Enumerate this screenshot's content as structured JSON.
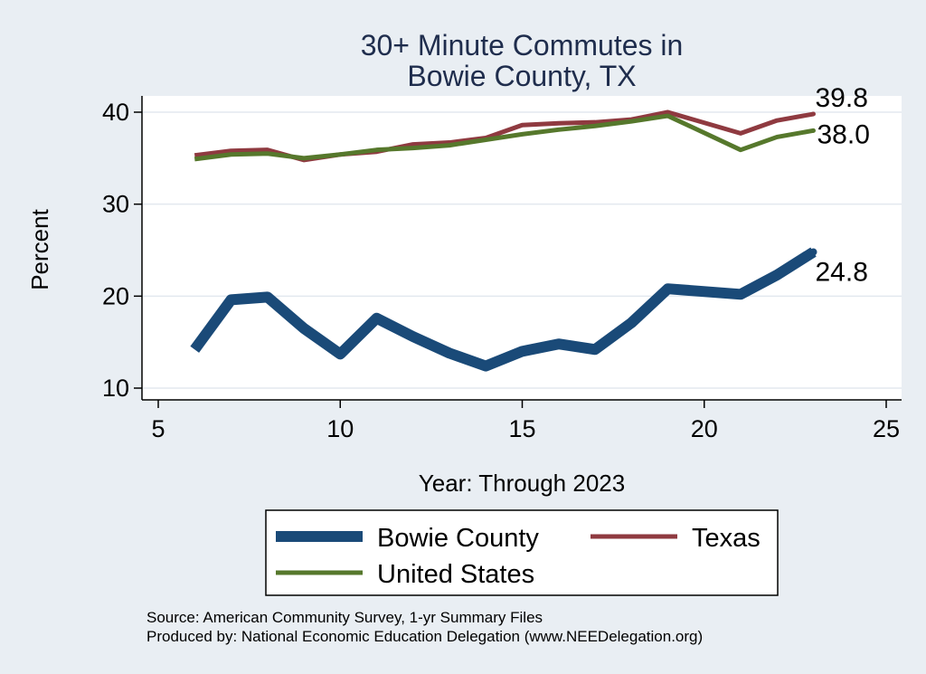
{
  "chart_data": {
    "type": "line",
    "title_lines": [
      "30+ Minute Commutes in",
      "Bowie County, TX"
    ],
    "xlabel": "Year: Through 2023",
    "ylabel": "Percent",
    "xlim": [
      5,
      25
    ],
    "ylim": [
      9,
      41
    ],
    "xticks": [
      5,
      10,
      15,
      20,
      25
    ],
    "yticks": [
      10,
      20,
      30,
      40
    ],
    "grid": true,
    "legend_position": "bottom",
    "series": [
      {
        "name": "Bowie County",
        "color": "#1a4a78",
        "x": [
          6,
          7,
          8,
          9,
          10,
          11,
          12,
          13,
          14,
          15,
          16,
          17,
          18,
          19,
          21,
          22,
          23
        ],
        "values": [
          14.2,
          19.6,
          19.9,
          16.5,
          13.7,
          17.6,
          15.6,
          13.8,
          12.4,
          14.0,
          14.8,
          14.2,
          17.1,
          20.8,
          20.2,
          22.3,
          24.8
        ],
        "end_label": "24.8"
      },
      {
        "name": "Texas",
        "color": "#8f3a40",
        "x": [
          6,
          7,
          8,
          9,
          10,
          11,
          12,
          13,
          14,
          15,
          16,
          17,
          18,
          19,
          21,
          22,
          23
        ],
        "values": [
          35.3,
          35.8,
          35.9,
          34.8,
          35.4,
          35.7,
          36.5,
          36.7,
          37.2,
          38.6,
          38.8,
          38.9,
          39.2,
          40.0,
          37.7,
          39.1,
          39.8
        ],
        "end_label": "39.8"
      },
      {
        "name": "United States",
        "color": "#56782c",
        "x": [
          6,
          7,
          8,
          9,
          10,
          11,
          12,
          13,
          14,
          15,
          16,
          17,
          18,
          19,
          21,
          22,
          23
        ],
        "values": [
          34.9,
          35.4,
          35.5,
          35.0,
          35.4,
          35.9,
          36.1,
          36.4,
          37.0,
          37.6,
          38.1,
          38.5,
          39.0,
          39.6,
          35.9,
          37.3,
          38.0
        ],
        "end_label": "38.0"
      }
    ],
    "notes": [
      "Source: American Community Survey, 1-yr Summary Files",
      "Produced by: National Economic Education Delegation (www.NEEDelegation.org)"
    ]
  }
}
